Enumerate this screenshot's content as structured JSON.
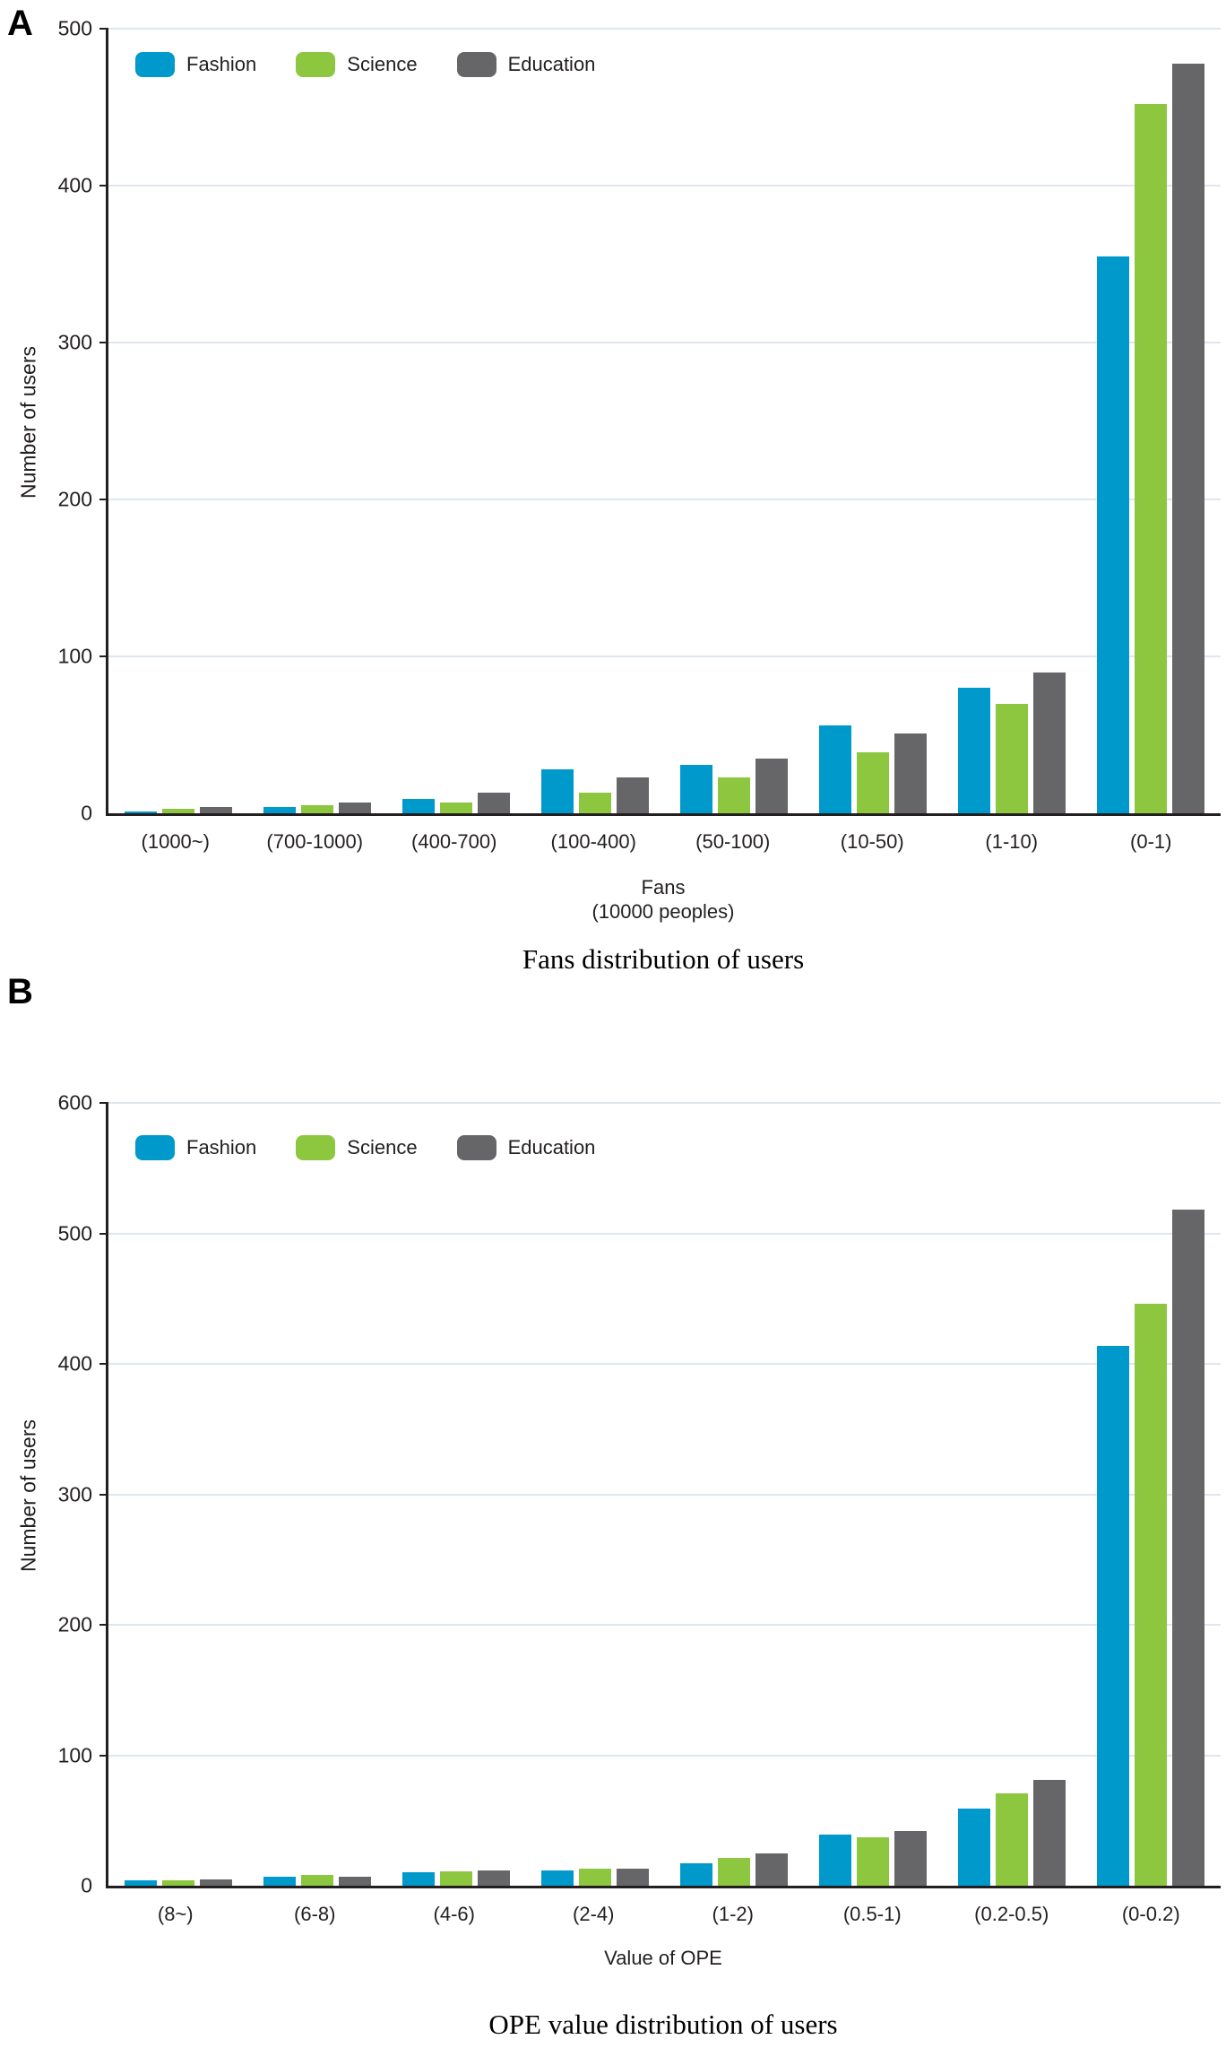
{
  "colors": {
    "fashion": "#0099CC",
    "science": "#8DC63F",
    "education": "#666669",
    "axis": "#231F20",
    "gridline": "#E0E5F2"
  },
  "chart_data": [
    {
      "id": "panel-a",
      "panel_label": "A",
      "type": "bar",
      "title": "Fans distribution of users",
      "xlabel_lines": [
        "Fans",
        "(10000 peoples)"
      ],
      "ylabel": "Number of users",
      "categories": [
        "(1000~)",
        "(700-1000)",
        "(400-700)",
        "(100-400)",
        "(50-100)",
        "(10-50)",
        "(1-10)",
        "(0-1)"
      ],
      "series": [
        {
          "name": "Fashion",
          "color": "#0099CC",
          "values": [
            1,
            4,
            9,
            28,
            31,
            56,
            80,
            355
          ]
        },
        {
          "name": "Science",
          "color": "#8DC63F",
          "values": [
            3,
            5,
            7,
            13,
            23,
            39,
            70,
            452
          ]
        },
        {
          "name": "Education",
          "color": "#666669",
          "values": [
            4,
            7,
            13,
            23,
            35,
            51,
            90,
            478
          ]
        }
      ],
      "ylim": [
        0,
        500
      ],
      "yticks": [
        0,
        100,
        200,
        300,
        400,
        500
      ],
      "grid": true,
      "legend_position": "top-left"
    },
    {
      "id": "panel-b",
      "panel_label": "B",
      "type": "bar",
      "title": "OPE value distribution of users",
      "xlabel_lines": [
        "Value of OPE"
      ],
      "ylabel": "Number of users",
      "categories": [
        "(8~)",
        "(6-8)",
        "(4-6)",
        "(2-4)",
        "(1-2)",
        "(0.5-1)",
        "(0.2-0.5)",
        "(0-0.2)"
      ],
      "series": [
        {
          "name": "Fashion",
          "color": "#0099CC",
          "values": [
            4,
            7,
            10,
            12,
            17,
            39,
            59,
            414
          ]
        },
        {
          "name": "Science",
          "color": "#8DC63F",
          "values": [
            4,
            8,
            11,
            13,
            21,
            37,
            71,
            446
          ]
        },
        {
          "name": "Education",
          "color": "#666669",
          "values": [
            5,
            7,
            12,
            13,
            25,
            42,
            81,
            518
          ]
        }
      ],
      "ylim": [
        0,
        600
      ],
      "yticks": [
        0,
        100,
        200,
        300,
        400,
        500,
        600
      ],
      "grid": true,
      "legend_position": "top-left"
    }
  ]
}
